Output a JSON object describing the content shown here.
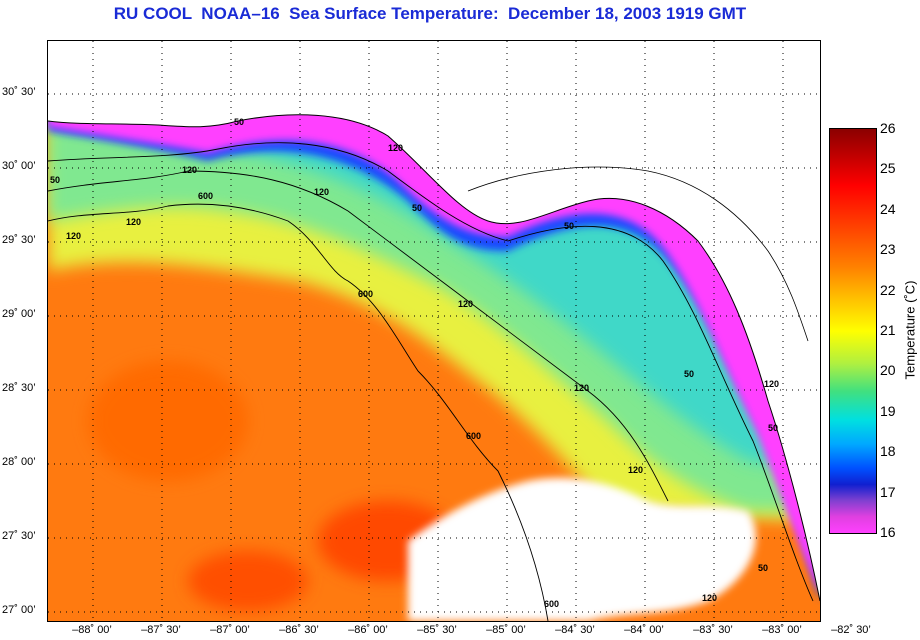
{
  "title": "RU COOL  NOAA–16  Sea Surface Temperature:  December 18, 2003 1919 GMT",
  "lat_labels": [
    "30˚ 30’",
    "30˚ 00’",
    "29˚ 30’",
    "29˚ 00’",
    "28˚ 30’",
    "28˚ 00’",
    "27˚ 30’",
    "27˚ 00’"
  ],
  "lon_labels": [
    "–88˚ 00’",
    "–87˚ 30’",
    "–87˚ 00’",
    "–86˚ 30’",
    "–86˚ 00’",
    "–85˚ 30’",
    "–85˚ 00’",
    "–84˚ 30’",
    "–84˚ 00’",
    "–83˚ 30’",
    "–83˚ 00’",
    "–82˚ 30’"
  ],
  "colorbar": {
    "title": "Temperature (˚C)",
    "ticks": [
      "26",
      "25",
      "24",
      "23",
      "22",
      "21",
      "20",
      "19",
      "18",
      "17",
      "16"
    ]
  },
  "contour_labels": [
    "50",
    "120",
    "600",
    "120",
    "50",
    "120",
    "50",
    "600",
    "120",
    "120",
    "600",
    "120",
    "50",
    "120",
    "50",
    "50",
    "600",
    "120",
    "50",
    "120",
    "120"
  ],
  "colors": {
    "title": "#1a2bd6",
    "warm": "#ff7a10",
    "hot": "#ff4a00",
    "mid": "#e8f040",
    "cool": "#40d8c8",
    "cold": "#1848ff",
    "edge": "#ff40ff"
  }
}
